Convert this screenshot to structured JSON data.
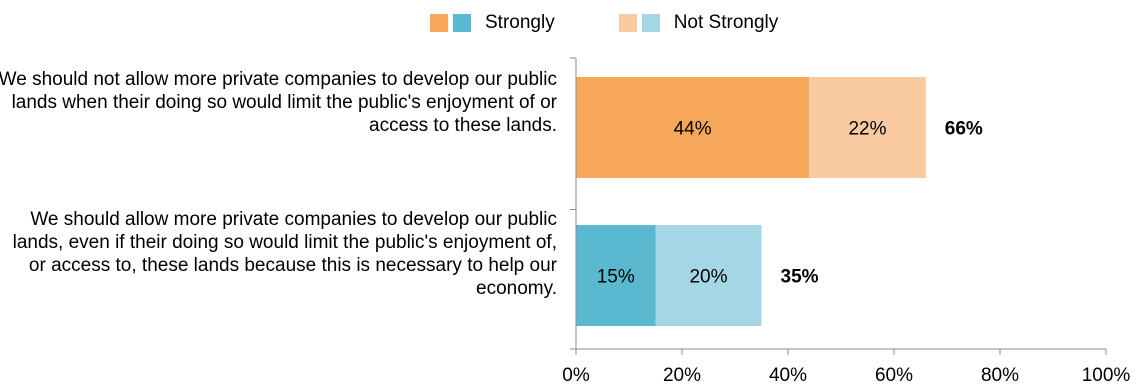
{
  "chart_data": {
    "type": "bar",
    "orientation": "horizontal",
    "stacked": true,
    "categories": [
      "We should not allow more private companies to develop our public lands when their doing so would limit the public's enjoyment of or access to these lands.",
      "We should allow more private companies to develop our public lands, even if their doing so would limit the public's enjoyment of, or access to, these lands because this is necessary to help our economy."
    ],
    "series": [
      {
        "name": "Strongly",
        "values": [
          44,
          15
        ],
        "labels": [
          "44%",
          "15%"
        ],
        "colors": [
          "#F7A75A",
          "#5BB8D1"
        ]
      },
      {
        "name": "Not Strongly",
        "values": [
          22,
          20
        ],
        "labels": [
          "22%",
          "20%"
        ],
        "colors": [
          "#F9C9A0",
          "#A5D6E5"
        ]
      }
    ],
    "totals": [
      66,
      35
    ],
    "total_labels": [
      "66%",
      "35%"
    ],
    "xlim": [
      0,
      100
    ],
    "xticks": [
      0,
      20,
      40,
      60,
      80,
      100
    ],
    "xtick_labels": [
      "0%",
      "20%",
      "40%",
      "60%",
      "80%",
      "100%"
    ],
    "legend": {
      "position": "top",
      "entries": [
        {
          "label": "Strongly",
          "colors": [
            "#F7A75A",
            "#5BB8D1"
          ]
        },
        {
          "label": "Not Strongly",
          "colors": [
            "#F9C9A0",
            "#A5D6E5"
          ]
        }
      ]
    },
    "grid": false
  }
}
